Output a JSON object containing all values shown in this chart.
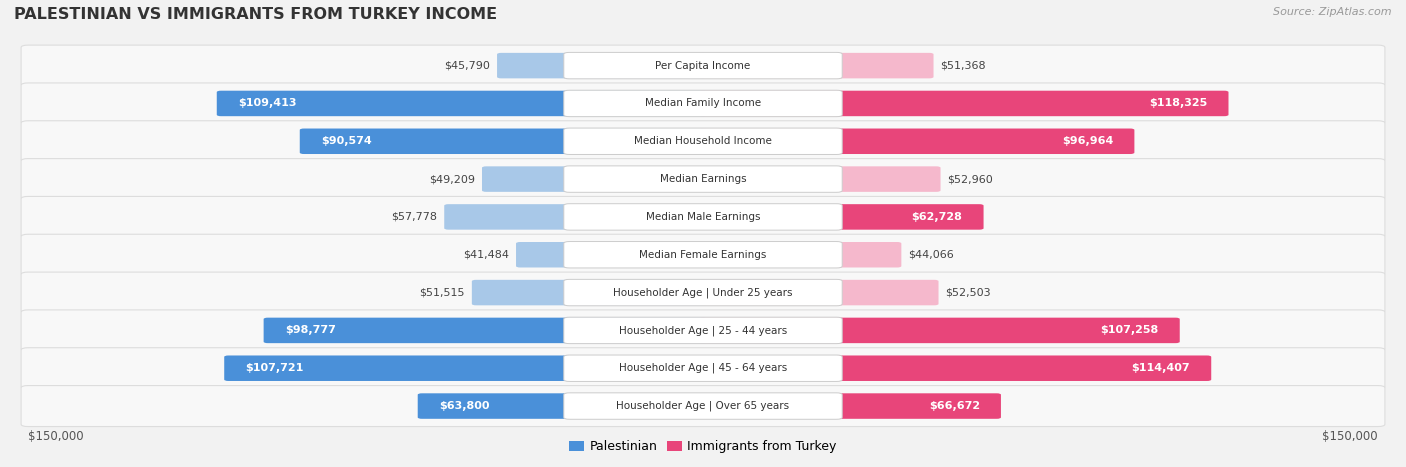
{
  "title": "PALESTINIAN VS IMMIGRANTS FROM TURKEY INCOME",
  "source": "Source: ZipAtlas.com",
  "categories": [
    "Per Capita Income",
    "Median Family Income",
    "Median Household Income",
    "Median Earnings",
    "Median Male Earnings",
    "Median Female Earnings",
    "Householder Age | Under 25 years",
    "Householder Age | 25 - 44 years",
    "Householder Age | 45 - 64 years",
    "Householder Age | Over 65 years"
  ],
  "palestinian_values": [
    45790,
    109413,
    90574,
    49209,
    57778,
    41484,
    51515,
    98777,
    107721,
    63800
  ],
  "turkey_values": [
    51368,
    118325,
    96964,
    52960,
    62728,
    44066,
    52503,
    107258,
    114407,
    66672
  ],
  "palestinian_labels": [
    "$45,790",
    "$109,413",
    "$90,574",
    "$49,209",
    "$57,778",
    "$41,484",
    "$51,515",
    "$98,777",
    "$107,721",
    "$63,800"
  ],
  "turkey_labels": [
    "$51,368",
    "$118,325",
    "$96,964",
    "$52,960",
    "$62,728",
    "$44,066",
    "$52,503",
    "$107,258",
    "$114,407",
    "$66,672"
  ],
  "palestinian_color_light": "#a8c8e8",
  "palestinian_color_dark": "#4a90d9",
  "turkey_color_light": "#f5b8cc",
  "turkey_color_dark": "#e8457a",
  "max_value": 150000,
  "background_color": "#f2f2f2",
  "row_bg": "#f8f8f8",
  "row_border": "#dddddd",
  "legend_palestinian": "Palestinian",
  "legend_turkey": "Immigrants from Turkey",
  "x_label_left": "$150,000",
  "x_label_right": "$150,000",
  "threshold_dark": 60000
}
